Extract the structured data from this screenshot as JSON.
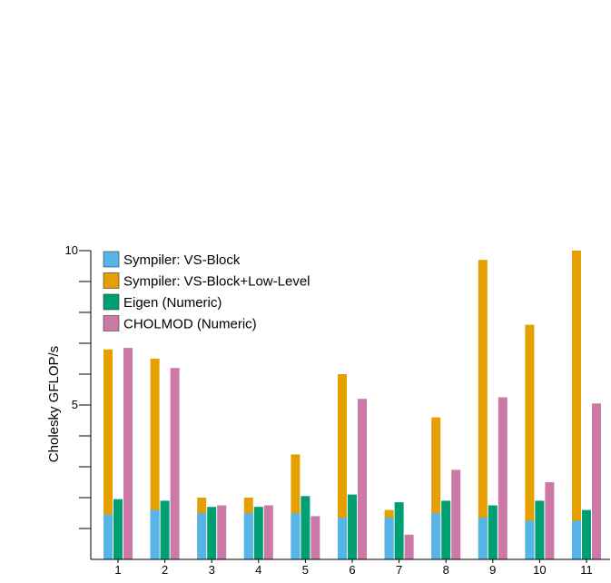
{
  "chart_data": {
    "type": "bar",
    "title": "",
    "xlabel": "",
    "ylabel": "Cholesky GFLOP/s",
    "ylim": [
      0,
      10
    ],
    "y_tick_values": [
      1,
      2,
      3,
      4,
      5,
      6,
      7,
      8,
      9,
      10
    ],
    "y_tick_labels": [
      "",
      "",
      "",
      "",
      "5",
      "",
      "",
      "",
      "",
      "10"
    ],
    "categories": [
      "1",
      "2",
      "3",
      "4",
      "5",
      "6",
      "7",
      "8",
      "9",
      "10",
      "11"
    ],
    "legend_position": "top-left",
    "grid": false,
    "stacked_note": "Sympiler: VS-Block bar is drawn in front of Sympiler: VS-Block+Low-Level bar in the same slot",
    "series": [
      {
        "name": "Sympiler: VS-Block",
        "color": "#56B4E9",
        "values": [
          1.45,
          1.6,
          1.5,
          1.5,
          1.5,
          1.35,
          1.35,
          1.5,
          1.35,
          1.25,
          1.25
        ]
      },
      {
        "name": "Sympiler: VS-Block+Low-Level",
        "color": "#E69F00",
        "values": [
          6.8,
          6.5,
          2.0,
          2.0,
          3.4,
          6.0,
          1.6,
          4.6,
          9.7,
          7.6,
          10.0
        ]
      },
      {
        "name": "Eigen (Numeric)",
        "color": "#009E73",
        "values": [
          1.95,
          1.9,
          1.7,
          1.7,
          2.05,
          2.1,
          1.85,
          1.9,
          1.75,
          1.9,
          1.6
        ]
      },
      {
        "name": "CHOLMOD (Numeric)",
        "color": "#CC79A7",
        "values": [
          6.85,
          6.2,
          1.75,
          1.75,
          1.4,
          5.2,
          0.8,
          2.9,
          5.25,
          2.5,
          5.05
        ]
      }
    ]
  }
}
